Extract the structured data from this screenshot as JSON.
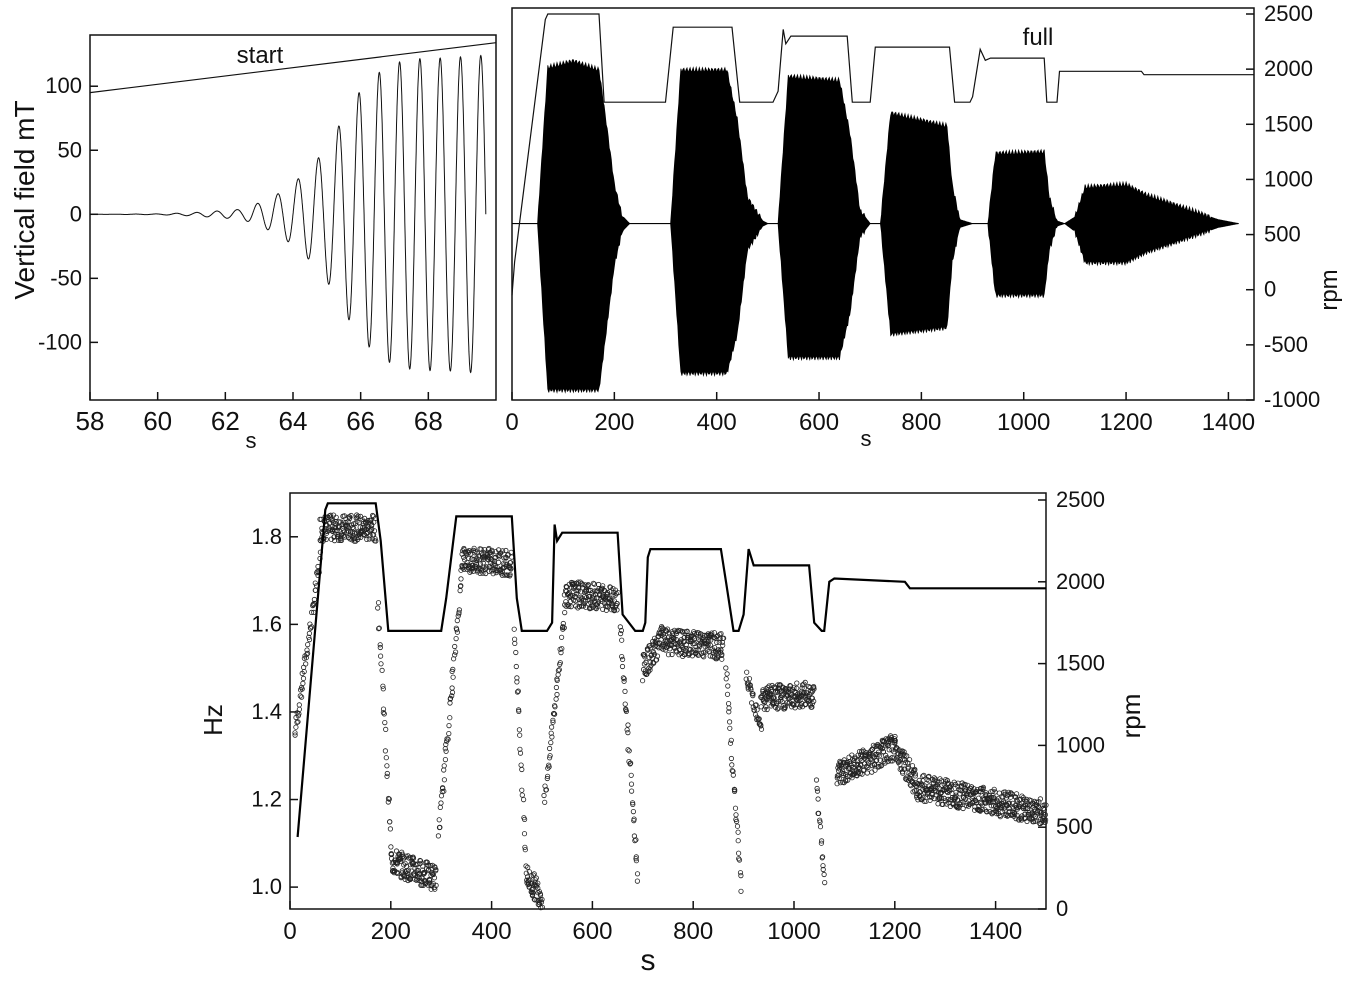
{
  "chart_data": [
    {
      "panel": "top-left",
      "type": "line",
      "ylabel": "Vertical field   mT",
      "xlabel": "s",
      "xlim": [
        58,
        70
      ],
      "ylim": [
        -145,
        140
      ],
      "xticks": [
        58,
        60,
        62,
        64,
        66,
        68
      ],
      "yticks": [
        -100,
        -50,
        0,
        50,
        100
      ],
      "annotation": "start",
      "series": [
        {
          "kind": "oscillation",
          "period_s": 0.6,
          "amplitude_envelope": [
            [
              58,
              0
            ],
            [
              60,
              0.3
            ],
            [
              61,
              1.2
            ],
            [
              62,
              3
            ],
            [
              62.5,
              4
            ],
            [
              63,
              9
            ],
            [
              63.5,
              15
            ],
            [
              64,
              24
            ],
            [
              64.5,
              36
            ],
            [
              65,
              52
            ],
            [
              65.5,
              76
            ],
            [
              66,
              97
            ],
            [
              66.5,
              110
            ],
            [
              67,
              118
            ],
            [
              67.5,
              121
            ],
            [
              68,
              122
            ],
            [
              68.5,
              122
            ],
            [
              69,
              123
            ],
            [
              69.5,
              124
            ]
          ]
        },
        {
          "kind": "rpm-trace",
          "x": [
            58,
            70
          ],
          "y": [
            95,
            134
          ]
        }
      ]
    },
    {
      "panel": "top-right",
      "type": "line",
      "xlabel": "s",
      "y2label": "rpm",
      "xlim": [
        0,
        1450
      ],
      "xticks": [
        0,
        200,
        400,
        600,
        800,
        1000,
        1200,
        1400
      ],
      "y2lim": [
        -1000,
        2500
      ],
      "y2ticks": [
        -1000,
        -500,
        0,
        500,
        1000,
        1500,
        2000,
        2500
      ],
      "annotation": "full",
      "rpm_trace": {
        "x": [
          0,
          5,
          65,
          70,
          170,
          180,
          300,
          315,
          430,
          445,
          510,
          520,
          530,
          535,
          545,
          655,
          665,
          700,
          710,
          855,
          865,
          895,
          900,
          915,
          925,
          935,
          1040,
          1045,
          1065,
          1070,
          1230,
          1235,
          1430,
          1450
        ],
        "y": [
          -50,
          250,
          2450,
          2500,
          2500,
          1700,
          1700,
          2380,
          2380,
          1700,
          1700,
          1800,
          2360,
          2230,
          2300,
          2300,
          1700,
          1700,
          2200,
          2200,
          1700,
          1700,
          1750,
          2180,
          2080,
          2100,
          2100,
          1700,
          1700,
          1980,
          1980,
          1950,
          1950,
          1950
        ]
      },
      "field_envelope": {
        "x": [
          0,
          50,
          70,
          120,
          170,
          185,
          200,
          215,
          230,
          290,
          310,
          330,
          420,
          440,
          460,
          490,
          500,
          520,
          540,
          640,
          660,
          680,
          700,
          720,
          740,
          850,
          860,
          875,
          900,
          930,
          945,
          1040,
          1050,
          1065,
          1080,
          1100,
          1120,
          1200,
          1240,
          1300,
          1380,
          1420
        ],
        "upper": [
          0,
          0,
          120,
          125,
          118,
          75,
          30,
          6,
          0,
          0,
          0,
          118,
          118,
          80,
          20,
          2,
          0,
          0,
          113,
          110,
          70,
          10,
          0,
          0,
          85,
          75,
          30,
          3,
          0,
          0,
          54,
          55,
          20,
          2,
          0,
          5,
          28,
          30,
          22,
          14,
          3,
          0
        ],
        "lower": [
          0,
          0,
          -128,
          -128,
          -128,
          -80,
          -32,
          -6,
          0,
          0,
          0,
          -115,
          -115,
          -85,
          -20,
          -2,
          0,
          0,
          -103,
          -103,
          -70,
          -10,
          0,
          0,
          -85,
          -80,
          -30,
          -3,
          0,
          0,
          -55,
          -55,
          -20,
          -2,
          0,
          -6,
          -30,
          -30,
          -22,
          -14,
          -3,
          0
        ]
      }
    },
    {
      "panel": "bottom",
      "type": "scatter",
      "ylabel": "Hz",
      "xlabel": "s",
      "y2label": "rpm",
      "xlim": [
        0,
        1500
      ],
      "ylim": [
        0.95,
        1.9
      ],
      "xticks": [
        0,
        200,
        400,
        600,
        800,
        1000,
        1200,
        1400
      ],
      "yticks": [
        1.0,
        1.2,
        1.4,
        1.6,
        1.8
      ],
      "y2lim": [
        0,
        2500
      ],
      "y2ticks": [
        0,
        500,
        1000,
        1500,
        2000,
        2500
      ],
      "rpm_trace": {
        "x": [
          15,
          70,
          75,
          170,
          180,
          195,
          300,
          310,
          330,
          440,
          450,
          460,
          510,
          520,
          525,
          530,
          540,
          650,
          660,
          685,
          700,
          705,
          710,
          715,
          855,
          865,
          880,
          890,
          900,
          910,
          920,
          930,
          1030,
          1040,
          1055,
          1060,
          1070,
          1080,
          1220,
          1230,
          1260,
          1500
        ],
        "y": [
          440,
          2440,
          2480,
          2480,
          2250,
          1700,
          1700,
          1900,
          2400,
          2400,
          1900,
          1700,
          1700,
          1750,
          2350,
          2250,
          2300,
          2300,
          1800,
          1700,
          1700,
          1750,
          2150,
          2200,
          2200,
          2000,
          1700,
          1700,
          1800,
          2200,
          2100,
          2100,
          2100,
          1750,
          1700,
          1700,
          2000,
          2020,
          2000,
          1960,
          1960,
          1960
        ]
      },
      "frequency_points": {
        "segments": [
          {
            "x": [
              10,
              60
            ],
            "y": [
              1.35,
              1.75
            ]
          },
          {
            "x": [
              60,
              170
            ],
            "y": [
              1.82,
              1.82
            ]
          },
          {
            "x": [
              175,
              200
            ],
            "y": [
              1.65,
              1.1
            ]
          },
          {
            "x": [
              200,
              290
            ],
            "y": [
              1.06,
              1.02
            ]
          },
          {
            "x": [
              295,
              340
            ],
            "y": [
              1.12,
              1.7
            ]
          },
          {
            "x": [
              340,
              440
            ],
            "y": [
              1.75,
              1.74
            ]
          },
          {
            "x": [
              445,
              470
            ],
            "y": [
              1.6,
              1.02
            ]
          },
          {
            "x": [
              470,
              500
            ],
            "y": [
              1.02,
              0.98
            ]
          },
          {
            "x": [
              505,
              545
            ],
            "y": [
              1.2,
              1.62
            ]
          },
          {
            "x": [
              545,
              650
            ],
            "y": [
              1.67,
              1.66
            ]
          },
          {
            "x": [
              655,
              690
            ],
            "y": [
              1.6,
              1.02
            ]
          },
          {
            "x": [
              700,
              740
            ],
            "y": [
              1.5,
              1.57
            ]
          },
          {
            "x": [
              740,
              860
            ],
            "y": [
              1.56,
              1.55
            ]
          },
          {
            "x": [
              865,
              895
            ],
            "y": [
              1.5,
              1.0
            ]
          },
          {
            "x": [
              905,
              935
            ],
            "y": [
              1.48,
              1.37
            ]
          },
          {
            "x": [
              935,
              1040
            ],
            "y": [
              1.43,
              1.44
            ]
          },
          {
            "x": [
              1045,
              1060
            ],
            "y": [
              1.25,
              1.0
            ]
          },
          {
            "x": [
              1085,
              1150
            ],
            "y": [
              1.26,
              1.29
            ]
          },
          {
            "x": [
              1150,
              1200
            ],
            "y": [
              1.29,
              1.32
            ]
          },
          {
            "x": [
              1200,
              1240
            ],
            "y": [
              1.32,
              1.24
            ]
          },
          {
            "x": [
              1240,
              1500
            ],
            "y": [
              1.23,
              1.17
            ]
          }
        ]
      }
    }
  ],
  "labels": {
    "tl_ylabel": "Vertical field   mT",
    "tl_xunit": "s",
    "tl_annotation": "start",
    "tr_xunit": "s",
    "tr_rpm": "rpm",
    "tr_annotation": "full",
    "b_ylabel": "Hz",
    "b_xunit": "s",
    "b_rpm": "rpm"
  }
}
